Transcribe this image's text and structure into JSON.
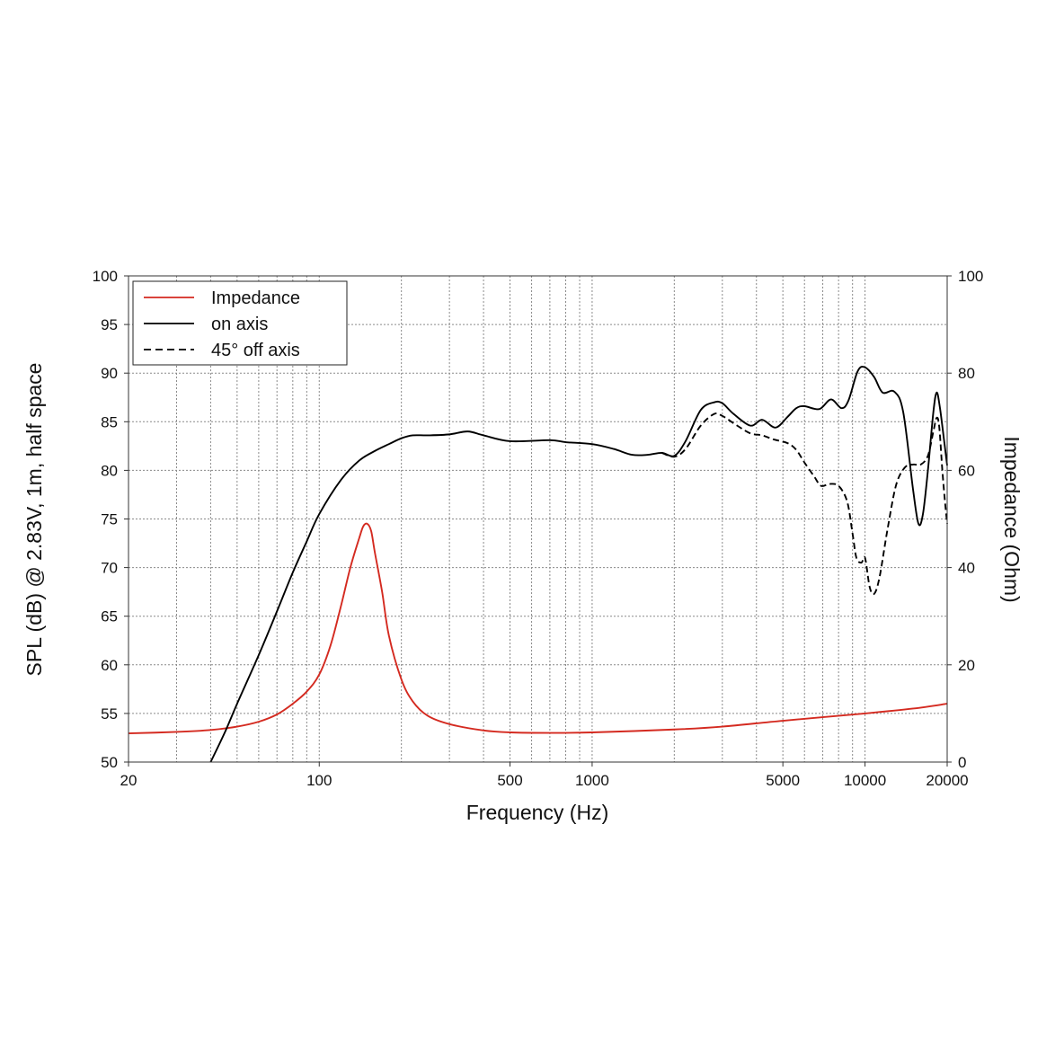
{
  "chart_data": {
    "type": "line",
    "xlabel": "Frequency (Hz)",
    "ylabel_left": "SPL (dB) @ 2.83V, 1m, half space",
    "ylabel_right": "Impedance (Ohm)",
    "x_scale": "log",
    "xlim": [
      20,
      20000
    ],
    "ylim_left": [
      50,
      100
    ],
    "ylim_right": [
      0,
      100
    ],
    "x_ticks": [
      20,
      100,
      500,
      1000,
      5000,
      10000,
      20000
    ],
    "x_tick_labels": [
      "20",
      "100",
      "500",
      "1000",
      "5000",
      "10000",
      "20000"
    ],
    "y_ticks_left": [
      50,
      55,
      60,
      65,
      70,
      75,
      80,
      85,
      90,
      95,
      100
    ],
    "y_ticks_right": [
      0,
      20,
      40,
      60,
      80,
      100
    ],
    "grid": true,
    "legend_position": "top-left",
    "colors": {
      "impedance": "#d42a20",
      "on_axis": "#000000",
      "off_axis": "#000000"
    },
    "series": [
      {
        "name": "Impedance",
        "axis": "right",
        "style": "solid",
        "points": [
          [
            20,
            5.9
          ],
          [
            30,
            6.2
          ],
          [
            40,
            6.6
          ],
          [
            50,
            7.3
          ],
          [
            60,
            8.3
          ],
          [
            70,
            9.8
          ],
          [
            80,
            12
          ],
          [
            90,
            14.5
          ],
          [
            100,
            18
          ],
          [
            110,
            24
          ],
          [
            120,
            32
          ],
          [
            130,
            40
          ],
          [
            140,
            46
          ],
          [
            145,
            48.5
          ],
          [
            150,
            49
          ],
          [
            155,
            47.5
          ],
          [
            160,
            43
          ],
          [
            170,
            35
          ],
          [
            180,
            26
          ],
          [
            200,
            17
          ],
          [
            220,
            12.5
          ],
          [
            250,
            9.5
          ],
          [
            300,
            7.8
          ],
          [
            400,
            6.5
          ],
          [
            500,
            6.1
          ],
          [
            700,
            6.0
          ],
          [
            1000,
            6.1
          ],
          [
            2000,
            6.7
          ],
          [
            3000,
            7.3
          ],
          [
            5000,
            8.5
          ],
          [
            10000,
            10
          ],
          [
            15000,
            11
          ],
          [
            20000,
            12
          ]
        ]
      },
      {
        "name": "on axis",
        "axis": "left",
        "style": "solid",
        "points": [
          [
            40,
            50
          ],
          [
            45,
            53
          ],
          [
            50,
            56
          ],
          [
            60,
            61
          ],
          [
            70,
            65.5
          ],
          [
            80,
            69.5
          ],
          [
            90,
            72.7
          ],
          [
            100,
            75.5
          ],
          [
            120,
            79
          ],
          [
            140,
            81
          ],
          [
            160,
            82
          ],
          [
            180,
            82.7
          ],
          [
            200,
            83.3
          ],
          [
            220,
            83.6
          ],
          [
            250,
            83.6
          ],
          [
            300,
            83.7
          ],
          [
            350,
            84
          ],
          [
            400,
            83.6
          ],
          [
            500,
            83
          ],
          [
            700,
            83.1
          ],
          [
            800,
            82.9
          ],
          [
            1000,
            82.7
          ],
          [
            1200,
            82.2
          ],
          [
            1400,
            81.6
          ],
          [
            1600,
            81.6
          ],
          [
            1800,
            81.8
          ],
          [
            2000,
            81.5
          ],
          [
            2200,
            83
          ],
          [
            2500,
            86.2
          ],
          [
            2800,
            87
          ],
          [
            3000,
            86.9
          ],
          [
            3300,
            85.8
          ],
          [
            3800,
            84.6
          ],
          [
            4200,
            85.2
          ],
          [
            4700,
            84.4
          ],
          [
            5200,
            85.5
          ],
          [
            5600,
            86.4
          ],
          [
            6000,
            86.6
          ],
          [
            6800,
            86.3
          ],
          [
            7500,
            87.3
          ],
          [
            8200,
            86.4
          ],
          [
            8700,
            87.2
          ],
          [
            9400,
            90.2
          ],
          [
            10000,
            90.6
          ],
          [
            10800,
            89.6
          ],
          [
            11600,
            88
          ],
          [
            12800,
            88.1
          ],
          [
            13800,
            86
          ],
          [
            15000,
            78
          ],
          [
            15700,
            74.5
          ],
          [
            16300,
            75.5
          ],
          [
            17000,
            80
          ],
          [
            17800,
            86
          ],
          [
            18300,
            88
          ],
          [
            18800,
            86.5
          ],
          [
            19500,
            83
          ],
          [
            20000,
            80.5
          ]
        ]
      },
      {
        "name": "45° off axis",
        "axis": "left",
        "style": "dashed",
        "points": [
          [
            1800,
            81.8
          ],
          [
            2000,
            81.4
          ],
          [
            2200,
            82.2
          ],
          [
            2500,
            84.6
          ],
          [
            2800,
            85.8
          ],
          [
            3000,
            85.6
          ],
          [
            3400,
            84.6
          ],
          [
            3800,
            83.8
          ],
          [
            4200,
            83.6
          ],
          [
            4600,
            83.2
          ],
          [
            5200,
            82.8
          ],
          [
            5600,
            82.1
          ],
          [
            6000,
            80.8
          ],
          [
            6500,
            79.4
          ],
          [
            6900,
            78.4
          ],
          [
            7400,
            78.6
          ],
          [
            8000,
            78.4
          ],
          [
            8600,
            76.8
          ],
          [
            9000,
            73.5
          ],
          [
            9300,
            71
          ],
          [
            9700,
            70.5
          ],
          [
            10000,
            71
          ],
          [
            10400,
            68
          ],
          [
            10800,
            67.3
          ],
          [
            11300,
            69
          ],
          [
            12100,
            74
          ],
          [
            13000,
            78.5
          ],
          [
            14000,
            80.3
          ],
          [
            15000,
            80.6
          ],
          [
            16000,
            80.6
          ],
          [
            17000,
            81.5
          ],
          [
            17800,
            84
          ],
          [
            18300,
            85.4
          ],
          [
            18700,
            84.5
          ],
          [
            19200,
            80
          ],
          [
            19600,
            77
          ],
          [
            20000,
            74.5
          ]
        ]
      }
    ]
  }
}
